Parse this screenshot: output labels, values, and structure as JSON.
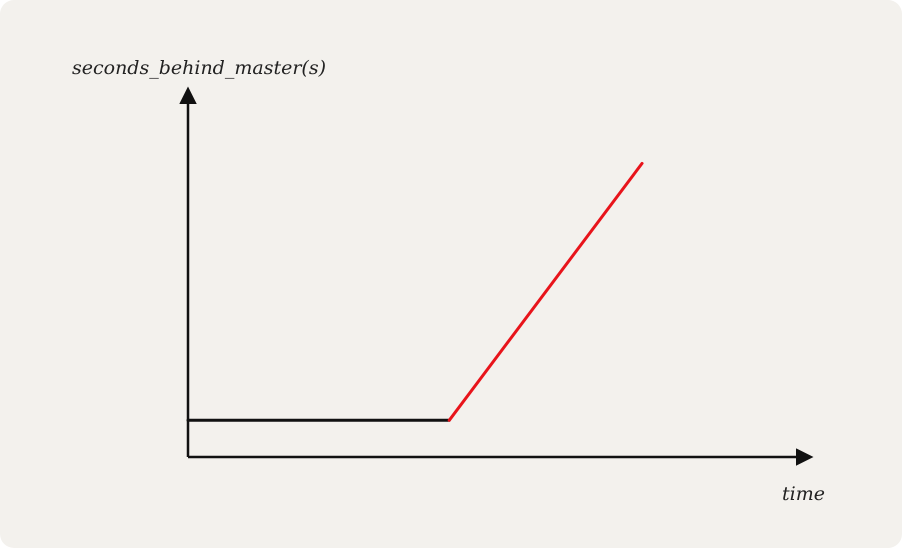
{
  "chart_data": {
    "type": "line",
    "title": "",
    "ylabel": "seconds_behind_master(s)",
    "xlabel": "time",
    "grid": false,
    "legend": "none",
    "axis_ticks": false,
    "xlim": [
      0,
      10
    ],
    "ylim": [
      0,
      10
    ],
    "series": [
      {
        "color": "#111111",
        "points": [
          [
            0,
            1
          ],
          [
            4.2,
            1
          ]
        ]
      },
      {
        "color": "#e8141b",
        "points": [
          [
            4.2,
            1
          ],
          [
            7.3,
            8
          ]
        ]
      }
    ]
  }
}
